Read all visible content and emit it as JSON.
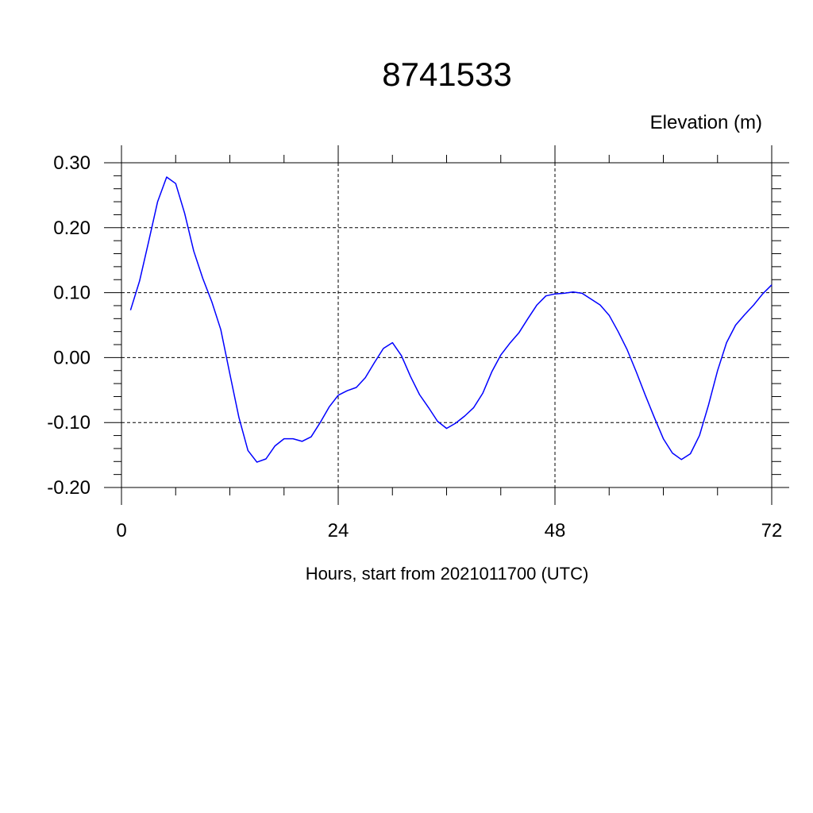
{
  "chart_data": {
    "type": "line",
    "title": "8741533",
    "ylabel": "Elevation (m)",
    "xlabel": "Hours, start from 2021011700 (UTC)",
    "xlim": [
      0,
      72
    ],
    "ylim": [
      -0.2,
      0.3
    ],
    "x_ticks": [
      0,
      24,
      48,
      72
    ],
    "x_tick_labels": [
      "0",
      "24",
      "48",
      "72"
    ],
    "y_ticks": [
      0.3,
      0.2,
      0.1,
      0.0,
      -0.1,
      -0.2
    ],
    "y_tick_labels": [
      "0.30",
      "0.20",
      "0.10",
      "0.00",
      "-0.10",
      "-0.20"
    ],
    "grid": true,
    "line_color": "#0000ff",
    "series": [
      {
        "x": [
          1,
          2,
          3,
          4,
          5,
          6,
          7,
          8,
          9,
          10,
          11,
          12,
          13,
          14,
          15,
          16,
          17,
          18,
          19,
          20,
          21,
          22,
          23,
          24,
          25,
          26,
          27,
          28,
          29,
          30,
          31,
          32,
          33,
          34,
          35,
          36,
          37,
          38,
          39,
          40,
          41,
          42,
          43,
          44,
          45,
          46,
          47,
          48,
          49,
          50,
          51,
          52,
          53,
          54,
          55,
          56,
          57,
          58,
          59,
          60,
          61,
          62,
          63,
          64,
          65,
          66,
          67,
          68,
          69,
          70,
          71,
          72
        ],
        "values": [
          0.073,
          0.118,
          0.178,
          0.24,
          0.278,
          0.268,
          0.222,
          0.164,
          0.122,
          0.086,
          0.043,
          -0.025,
          -0.092,
          -0.143,
          -0.161,
          -0.156,
          -0.136,
          -0.125,
          -0.125,
          -0.129,
          -0.122,
          -0.1,
          -0.076,
          -0.058,
          -0.051,
          -0.046,
          -0.031,
          -0.008,
          0.014,
          0.023,
          0.003,
          -0.029,
          -0.057,
          -0.077,
          -0.098,
          -0.109,
          -0.101,
          -0.09,
          -0.077,
          -0.055,
          -0.022,
          0.004,
          0.022,
          0.038,
          0.06,
          0.081,
          0.095,
          0.098,
          0.099,
          0.101,
          0.099,
          0.09,
          0.081,
          0.065,
          0.04,
          0.012,
          -0.022,
          -0.058,
          -0.092,
          -0.125,
          -0.147,
          -0.157,
          -0.148,
          -0.12,
          -0.073,
          -0.02,
          0.023,
          0.05,
          0.066,
          0.081,
          0.098,
          0.112
        ]
      }
    ]
  }
}
